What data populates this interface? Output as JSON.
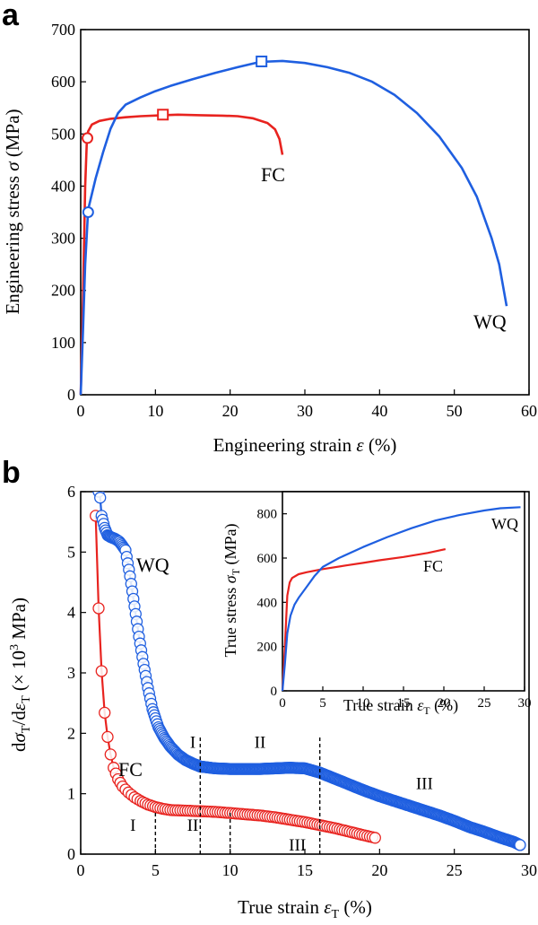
{
  "chart_data": [
    {
      "panel": "a",
      "type": "line",
      "xlabel": "Engineering strain",
      "xlabel_symbol": "ε",
      "xlabel_unit": "(%)",
      "ylabel": "Engineering stress",
      "ylabel_symbol": "σ",
      "ylabel_unit": "(MPa)",
      "xlim": [
        0,
        60
      ],
      "ylim": [
        0,
        700
      ],
      "xticks": [
        0,
        10,
        20,
        30,
        40,
        50,
        60
      ],
      "yticks": [
        0,
        100,
        200,
        300,
        400,
        500,
        600,
        700
      ],
      "series": [
        {
          "name": "FC",
          "color": "#e8231f",
          "points": [
            [
              0,
              0
            ],
            [
              0.3,
              180
            ],
            [
              0.6,
              400
            ],
            [
              0.8,
              480
            ],
            [
              1.0,
              505
            ],
            [
              1.5,
              518
            ],
            [
              2.5,
              525
            ],
            [
              4,
              529
            ],
            [
              6,
              532
            ],
            [
              8,
              534
            ],
            [
              11,
              536
            ],
            [
              13,
              537
            ],
            [
              16,
              536
            ],
            [
              19,
              535
            ],
            [
              21,
              534
            ],
            [
              23,
              530
            ],
            [
              25,
              521
            ],
            [
              26,
              509
            ],
            [
              26.6,
              490
            ],
            [
              27,
              460
            ]
          ],
          "markers": [
            {
              "x": 0.9,
              "y": 492,
              "shape": "circle"
            },
            {
              "x": 11,
              "y": 537,
              "shape": "square"
            }
          ]
        },
        {
          "name": "WQ",
          "color": "#1f5fe0",
          "points": [
            [
              0,
              0
            ],
            [
              0.3,
              120
            ],
            [
              0.6,
              250
            ],
            [
              1.0,
              355
            ],
            [
              2,
              415
            ],
            [
              3,
              465
            ],
            [
              4,
              510
            ],
            [
              5,
              540
            ],
            [
              6,
              556
            ],
            [
              8,
              570
            ],
            [
              10,
              582
            ],
            [
              12,
              592
            ],
            [
              15,
              605
            ],
            [
              18,
              617
            ],
            [
              21,
              628
            ],
            [
              24,
              638
            ],
            [
              27,
              640
            ],
            [
              30,
              636
            ],
            [
              33,
              628
            ],
            [
              36,
              617
            ],
            [
              39,
              600
            ],
            [
              42,
              575
            ],
            [
              45,
              540
            ],
            [
              48,
              495
            ],
            [
              51,
              435
            ],
            [
              53,
              380
            ],
            [
              55,
              300
            ],
            [
              56,
              250
            ],
            [
              57,
              170
            ]
          ],
          "markers": [
            {
              "x": 1.0,
              "y": 350,
              "shape": "circle"
            },
            {
              "x": 24.2,
              "y": 639,
              "shape": "square"
            }
          ]
        }
      ]
    },
    {
      "panel": "b",
      "type": "scatter",
      "xlabel": "True strain",
      "xlabel_symbol": "ε",
      "xlabel_sub": "T",
      "xlabel_unit": "(%)",
      "ylabel_unit": "MPa)",
      "xlim": [
        0,
        30
      ],
      "ylim": [
        0,
        6
      ],
      "xticks": [
        0,
        5,
        10,
        15,
        20,
        25,
        30
      ],
      "yticks": [
        0,
        1,
        2,
        3,
        4,
        5,
        6
      ],
      "series": [
        {
          "name": "FC",
          "color": "#e8231f",
          "points": [
            [
              1.0,
              5.6
            ],
            [
              1.2,
              4.07
            ],
            [
              1.4,
              3.03
            ],
            [
              1.6,
              2.34
            ],
            [
              1.8,
              1.94
            ],
            [
              2.0,
              1.65
            ],
            [
              2.2,
              1.43
            ],
            [
              2.5,
              1.24
            ],
            [
              2.8,
              1.12
            ],
            [
              3.2,
              1.02
            ],
            [
              3.6,
              0.94
            ],
            [
              4.0,
              0.88
            ],
            [
              4.5,
              0.82
            ],
            [
              5.0,
              0.78
            ],
            [
              5.5,
              0.75
            ],
            [
              6.0,
              0.73
            ],
            [
              7.0,
              0.72
            ],
            [
              8.0,
              0.71
            ],
            [
              9.0,
              0.7
            ],
            [
              10.0,
              0.68
            ],
            [
              11.0,
              0.66
            ],
            [
              12.0,
              0.64
            ],
            [
              13.0,
              0.61
            ],
            [
              14.0,
              0.57
            ],
            [
              15.0,
              0.53
            ],
            [
              16.0,
              0.48
            ],
            [
              17.0,
              0.43
            ],
            [
              18.0,
              0.37
            ],
            [
              19.0,
              0.31
            ],
            [
              19.7,
              0.27
            ]
          ]
        },
        {
          "name": "WQ",
          "color": "#1f5fe0",
          "points": [
            [
              1.2,
              6.0
            ],
            [
              1.3,
              5.9
            ],
            [
              1.4,
              5.6
            ],
            [
              1.6,
              5.4
            ],
            [
              1.8,
              5.28
            ],
            [
              2.0,
              5.25
            ],
            [
              2.3,
              5.22
            ],
            [
              2.6,
              5.17
            ],
            [
              3.0,
              5.03
            ],
            [
              3.3,
              4.6
            ],
            [
              3.6,
              4.1
            ],
            [
              3.9,
              3.6
            ],
            [
              4.2,
              3.15
            ],
            [
              4.5,
              2.75
            ],
            [
              4.8,
              2.4
            ],
            [
              5.2,
              2.1
            ],
            [
              5.6,
              1.92
            ],
            [
              6.0,
              1.78
            ],
            [
              6.5,
              1.65
            ],
            [
              7.0,
              1.56
            ],
            [
              7.5,
              1.5
            ],
            [
              8.0,
              1.45
            ],
            [
              9.0,
              1.42
            ],
            [
              10.0,
              1.41
            ],
            [
              12.0,
              1.41
            ],
            [
              14.0,
              1.43
            ],
            [
              15.0,
              1.42
            ],
            [
              16.0,
              1.35
            ],
            [
              17.0,
              1.25
            ],
            [
              18.0,
              1.15
            ],
            [
              19.0,
              1.05
            ],
            [
              20.0,
              0.96
            ],
            [
              21.0,
              0.88
            ],
            [
              22.0,
              0.8
            ],
            [
              23.0,
              0.72
            ],
            [
              24.0,
              0.64
            ],
            [
              25.0,
              0.55
            ],
            [
              26.0,
              0.45
            ],
            [
              27.0,
              0.37
            ],
            [
              28.0,
              0.28
            ],
            [
              29.0,
              0.2
            ],
            [
              29.4,
              0.15
            ]
          ]
        }
      ],
      "stage_boundaries": [
        {
          "series": "FC",
          "x": [
            5,
            10
          ],
          "ymax": 0.72
        },
        {
          "series": "WQ",
          "x": [
            8,
            16
          ],
          "ymax": 1.95
        }
      ],
      "stage_labels": [
        {
          "text": "I",
          "series": "FC",
          "x": 3.5,
          "y": 0.33
        },
        {
          "text": "II",
          "series": "FC",
          "x": 7.5,
          "y": 0.33
        },
        {
          "text": "III",
          "series": "FC",
          "x": 14.5,
          "y": 0.0
        },
        {
          "text": "I",
          "series": "WQ",
          "x": 7.5,
          "y": 1.7
        },
        {
          "text": "II",
          "series": "WQ",
          "x": 12.0,
          "y": 1.7
        },
        {
          "text": "III",
          "series": "WQ",
          "x": 23.0,
          "y": 1.02
        }
      ],
      "inset": {
        "type": "line",
        "xlabel": "True strain",
        "xlabel_symbol": "ε",
        "xlabel_sub": "T",
        "xlabel_unit": "(%)",
        "ylabel": "True stress",
        "ylabel_symbol": "σ",
        "ylabel_sub": "T",
        "ylabel_unit": "(MPa)",
        "xlim": [
          0,
          30
        ],
        "ylim": [
          0,
          900
        ],
        "xticks": [
          0,
          5,
          10,
          15,
          20,
          25,
          30
        ],
        "yticks": [
          0,
          200,
          400,
          600,
          800
        ],
        "series": [
          {
            "name": "FC",
            "color": "#e8231f",
            "points": [
              [
                0,
                0
              ],
              [
                0.3,
                200
              ],
              [
                0.6,
                430
              ],
              [
                0.9,
                490
              ],
              [
                1.2,
                510
              ],
              [
                2,
                527
              ],
              [
                3,
                536
              ],
              [
                5,
                550
              ],
              [
                8,
                567
              ],
              [
                10,
                578
              ],
              [
                12,
                590
              ],
              [
                15,
                605
              ],
              [
                18,
                623
              ],
              [
                20.2,
                640
              ]
            ]
          },
          {
            "name": "WQ",
            "color": "#1f5fe0",
            "points": [
              [
                0,
                0
              ],
              [
                0.3,
                120
              ],
              [
                0.6,
                260
              ],
              [
                1.0,
                340
              ],
              [
                1.5,
                390
              ],
              [
                2,
                420
              ],
              [
                3,
                470
              ],
              [
                4,
                520
              ],
              [
                5,
                560
              ],
              [
                7,
                600
              ],
              [
                10,
                650
              ],
              [
                13,
                695
              ],
              [
                16,
                735
              ],
              [
                19,
                770
              ],
              [
                22,
                795
              ],
              [
                25,
                815
              ],
              [
                27,
                825
              ],
              [
                29.5,
                830
              ]
            ]
          }
        ]
      }
    }
  ]
}
